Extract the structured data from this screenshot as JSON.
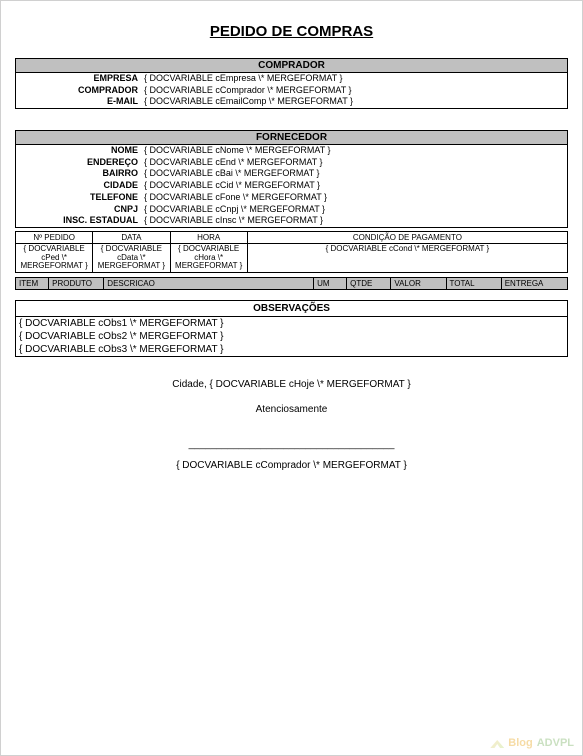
{
  "title": "PEDIDO DE COMPRAS",
  "colors": {
    "section_header_bg": "#c0c0c0",
    "border": "#000000",
    "page_bg": "#ffffff",
    "watermark_blog": "#e69b00",
    "watermark_advpl": "#6aa84f"
  },
  "fonts": {
    "family": "Arial",
    "title_size_pt": 15,
    "section_header_size_pt": 10,
    "body_size_pt": 9,
    "small_size_pt": 8
  },
  "comprador": {
    "header": "COMPRADOR",
    "fields": [
      {
        "label": "EMPRESA",
        "value": "{ DOCVARIABLE cEmpresa \\* MERGEFORMAT }"
      },
      {
        "label": "COMPRADOR",
        "value": "{ DOCVARIABLE cComprador \\* MERGEFORMAT }"
      },
      {
        "label": "E-MAIL",
        "value": "{ DOCVARIABLE cEmailComp \\* MERGEFORMAT }"
      }
    ]
  },
  "fornecedor": {
    "header": "FORNECEDOR",
    "fields": [
      {
        "label": "NOME",
        "value": "{ DOCVARIABLE cNome \\* MERGEFORMAT }"
      },
      {
        "label": "ENDEREÇO",
        "value": "{ DOCVARIABLE cEnd \\* MERGEFORMAT }"
      },
      {
        "label": "BAIRRO",
        "value": "{ DOCVARIABLE cBai \\* MERGEFORMAT }"
      },
      {
        "label": "CIDADE",
        "value": "{ DOCVARIABLE cCid \\* MERGEFORMAT }"
      },
      {
        "label": "TELEFONE",
        "value": "{ DOCVARIABLE cFone \\* MERGEFORMAT }"
      },
      {
        "label": "CNPJ",
        "value": "{ DOCVARIABLE cCnpj \\* MERGEFORMAT }"
      },
      {
        "label": "INSC. ESTADUAL",
        "value": "{ DOCVARIABLE cInsc \\* MERGEFORMAT }"
      }
    ]
  },
  "meta": {
    "columns": [
      {
        "label": "Nº PEDIDO",
        "value": "{ DOCVARIABLE cPed \\* MERGEFORMAT }",
        "width": "14%"
      },
      {
        "label": "DATA",
        "value": "{ DOCVARIABLE cData \\* MERGEFORMAT }",
        "width": "14%"
      },
      {
        "label": "HORA",
        "value": "{ DOCVARIABLE cHora \\* MERGEFORMAT }",
        "width": "14%"
      },
      {
        "label": "CONDIÇÃO DE PAGAMENTO",
        "value": "{ DOCVARIABLE cCond \\* MERGEFORMAT }",
        "width": "58%"
      }
    ]
  },
  "items": {
    "columns": [
      "ITEM",
      "PRODUTO",
      "DESCRICAO",
      "UM",
      "QTDE",
      "VALOR",
      "TOTAL",
      "ENTREGA"
    ],
    "widths": [
      "6%",
      "10%",
      "38%",
      "6%",
      "8%",
      "10%",
      "10%",
      "12%"
    ]
  },
  "observacoes": {
    "header": "OBSERVAÇÕES",
    "lines": [
      "{ DOCVARIABLE  cObs1 \\* MERGEFORMAT  }",
      "{ DOCVARIABLE  cObs2 \\* MERGEFORMAT  }",
      "{ DOCVARIABLE  cObs3 \\* MERGEFORMAT  }"
    ]
  },
  "footer": {
    "city_line": "Cidade, { DOCVARIABLE  cHoje  \\* MERGEFORMAT }",
    "closing": "Atenciosamente",
    "line": "_____________________________________",
    "signer": "{ DOCVARIABLE  cComprador  \\* MERGEFORMAT }"
  },
  "watermark": {
    "blog": "Blog",
    "advpl": "ADVPL"
  }
}
